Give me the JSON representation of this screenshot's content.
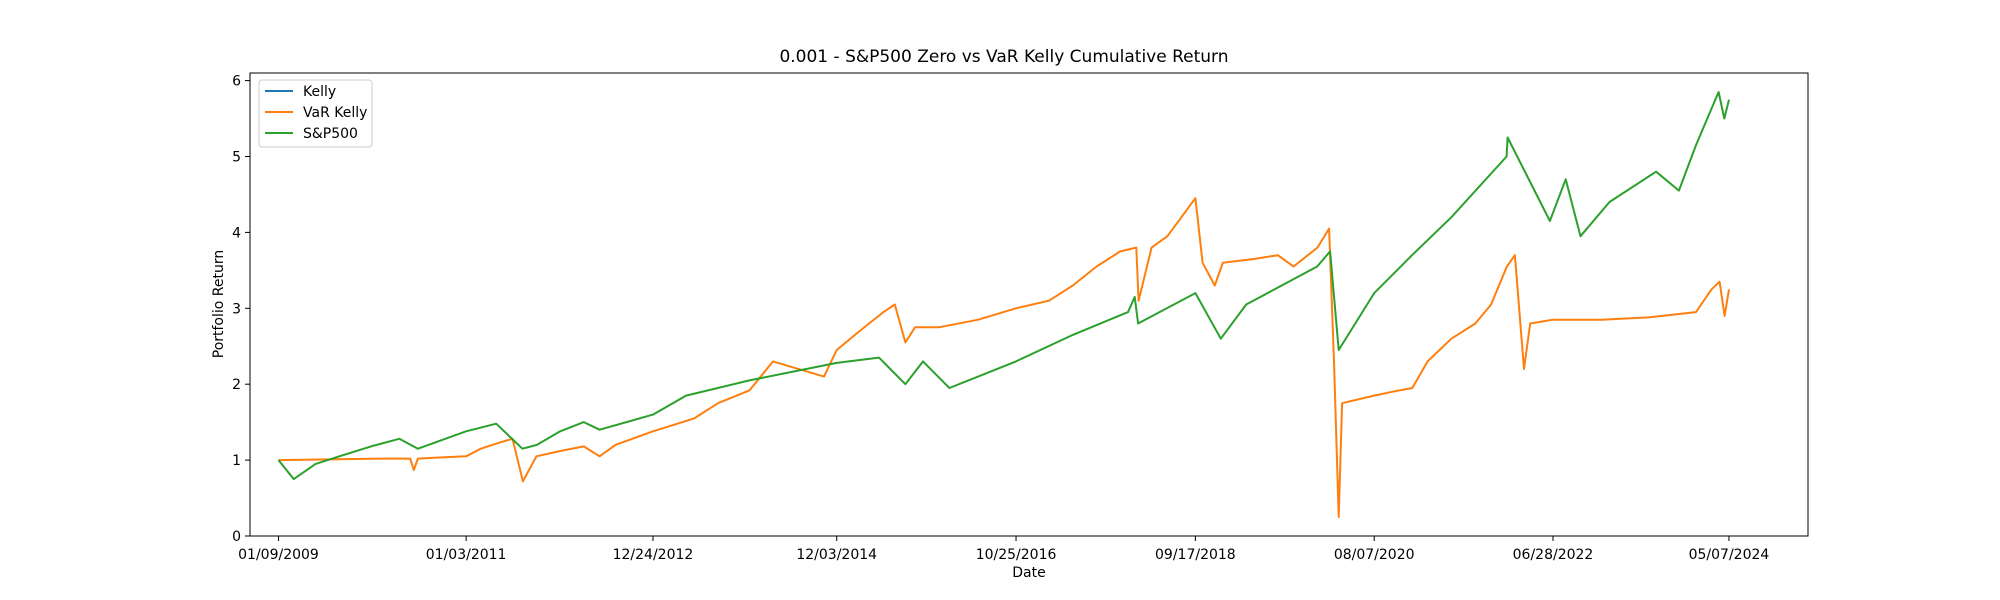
{
  "chart_data": {
    "type": "line",
    "title": "0.001 - S&P500 Zero vs VaR Kelly Cumulative Return",
    "xlabel": "Date",
    "ylabel": "Portfolio Return",
    "x_ticks": [
      "01/09/2009",
      "01/03/2011",
      "12/24/2012",
      "12/03/2014",
      "10/25/2016",
      "09/17/2018",
      "08/07/2020",
      "06/28/2022",
      "05/07/2024"
    ],
    "xlim": [
      "2008-09-21",
      "2025-03-08"
    ],
    "ylim": [
      0,
      6.1
    ],
    "y_ticks": [
      0,
      1,
      2,
      3,
      4,
      5,
      6
    ],
    "y_tick_labels": [
      "0",
      "1",
      "2",
      "3",
      "4",
      "5",
      "6"
    ],
    "grid": false,
    "legend_position": "top-left",
    "series": [
      {
        "name": "Kelly",
        "color": "#1f77b4",
        "points": [
          [
            "2009-01-09",
            1.0
          ],
          [
            "2024-05-07",
            3.25
          ]
        ]
      },
      {
        "name": "VaR Kelly",
        "color": "#ff7f0e",
        "points": [
          [
            "2009-01-09",
            1.0
          ],
          [
            "2010-02-01",
            1.02
          ],
          [
            "2010-06-01",
            1.02
          ],
          [
            "2010-06-15",
            0.87
          ],
          [
            "2010-07-01",
            1.02
          ],
          [
            "2010-09-01",
            1.03
          ],
          [
            "2011-01-03",
            1.05
          ],
          [
            "2011-03-01",
            1.15
          ],
          [
            "2011-05-01",
            1.22
          ],
          [
            "2011-07-01",
            1.28
          ],
          [
            "2011-08-10",
            0.72
          ],
          [
            "2011-10-01",
            1.05
          ],
          [
            "2012-01-01",
            1.12
          ],
          [
            "2012-04-01",
            1.18
          ],
          [
            "2012-06-01",
            1.05
          ],
          [
            "2012-08-01",
            1.2
          ],
          [
            "2012-12-24",
            1.38
          ],
          [
            "2013-06-01",
            1.55
          ],
          [
            "2013-09-01",
            1.75
          ],
          [
            "2014-01-01",
            1.92
          ],
          [
            "2014-04-01",
            2.3
          ],
          [
            "2014-10-15",
            2.1
          ],
          [
            "2014-12-03",
            2.45
          ],
          [
            "2015-03-01",
            2.7
          ],
          [
            "2015-06-01",
            2.95
          ],
          [
            "2015-07-15",
            3.05
          ],
          [
            "2015-08-25",
            2.55
          ],
          [
            "2015-10-01",
            2.75
          ],
          [
            "2016-01-01",
            2.75
          ],
          [
            "2016-06-01",
            2.85
          ],
          [
            "2016-10-25",
            3.0
          ],
          [
            "2017-03-01",
            3.1
          ],
          [
            "2017-06-01",
            3.3
          ],
          [
            "2017-09-01",
            3.55
          ],
          [
            "2017-12-01",
            3.75
          ],
          [
            "2018-02-01",
            3.8
          ],
          [
            "2018-02-10",
            3.1
          ],
          [
            "2018-04-01",
            3.8
          ],
          [
            "2018-06-01",
            3.95
          ],
          [
            "2018-09-17",
            4.45
          ],
          [
            "2018-10-15",
            3.6
          ],
          [
            "2018-12-01",
            3.3
          ],
          [
            "2019-01-01",
            3.6
          ],
          [
            "2019-05-01",
            3.65
          ],
          [
            "2019-08-01",
            3.7
          ],
          [
            "2019-10-01",
            3.55
          ],
          [
            "2020-01-01",
            3.8
          ],
          [
            "2020-02-15",
            4.05
          ],
          [
            "2020-03-05",
            2.3
          ],
          [
            "2020-03-23",
            0.25
          ],
          [
            "2020-04-05",
            1.75
          ],
          [
            "2020-08-07",
            1.85
          ],
          [
            "2020-10-15",
            1.9
          ],
          [
            "2021-01-01",
            1.95
          ],
          [
            "2021-03-01",
            2.3
          ],
          [
            "2021-06-01",
            2.6
          ],
          [
            "2021-09-01",
            2.8
          ],
          [
            "2021-11-01",
            3.05
          ],
          [
            "2022-01-01",
            3.55
          ],
          [
            "2022-02-01",
            3.7
          ],
          [
            "2022-03-08",
            2.2
          ],
          [
            "2022-04-01",
            2.8
          ],
          [
            "2022-06-28",
            2.85
          ],
          [
            "2023-01-01",
            2.85
          ],
          [
            "2023-07-01",
            2.88
          ],
          [
            "2024-01-01",
            2.95
          ],
          [
            "2024-03-01",
            3.25
          ],
          [
            "2024-04-01",
            3.35
          ],
          [
            "2024-04-20",
            2.9
          ],
          [
            "2024-05-07",
            3.25
          ]
        ]
      },
      {
        "name": "S&P500",
        "color": "#2ca02c",
        "points": [
          [
            "2009-01-09",
            1.0
          ],
          [
            "2009-03-09",
            0.75
          ],
          [
            "2009-06-01",
            0.95
          ],
          [
            "2009-09-01",
            1.05
          ],
          [
            "2010-01-01",
            1.18
          ],
          [
            "2010-04-20",
            1.28
          ],
          [
            "2010-07-01",
            1.15
          ],
          [
            "2011-01-03",
            1.38
          ],
          [
            "2011-04-29",
            1.48
          ],
          [
            "2011-08-08",
            1.15
          ],
          [
            "2011-10-03",
            1.2
          ],
          [
            "2012-01-01",
            1.38
          ],
          [
            "2012-04-01",
            1.5
          ],
          [
            "2012-06-01",
            1.4
          ],
          [
            "2012-12-24",
            1.6
          ],
          [
            "2013-05-01",
            1.85
          ],
          [
            "2013-12-31",
            2.05
          ],
          [
            "2014-12-03",
            2.28
          ],
          [
            "2015-05-15",
            2.35
          ],
          [
            "2015-08-25",
            2.0
          ],
          [
            "2015-11-01",
            2.3
          ],
          [
            "2016-02-11",
            1.95
          ],
          [
            "2016-10-25",
            2.3
          ],
          [
            "2017-06-01",
            2.65
          ],
          [
            "2017-12-31",
            2.95
          ],
          [
            "2018-01-26",
            3.15
          ],
          [
            "2018-02-08",
            2.8
          ],
          [
            "2018-09-17",
            3.2
          ],
          [
            "2018-12-24",
            2.6
          ],
          [
            "2019-04-01",
            3.05
          ],
          [
            "2019-12-31",
            3.55
          ],
          [
            "2020-02-19",
            3.75
          ],
          [
            "2020-03-23",
            2.45
          ],
          [
            "2020-08-07",
            3.2
          ],
          [
            "2020-12-31",
            3.7
          ],
          [
            "2021-06-01",
            4.2
          ],
          [
            "2021-12-31",
            5.0
          ],
          [
            "2022-01-04",
            5.25
          ],
          [
            "2022-06-16",
            4.15
          ],
          [
            "2022-08-16",
            4.7
          ],
          [
            "2022-10-12",
            3.95
          ],
          [
            "2023-02-01",
            4.4
          ],
          [
            "2023-07-31",
            4.8
          ],
          [
            "2023-10-27",
            4.55
          ],
          [
            "2024-01-01",
            5.15
          ],
          [
            "2024-03-28",
            5.85
          ],
          [
            "2024-04-19",
            5.5
          ],
          [
            "2024-05-07",
            5.75
          ]
        ]
      }
    ]
  }
}
